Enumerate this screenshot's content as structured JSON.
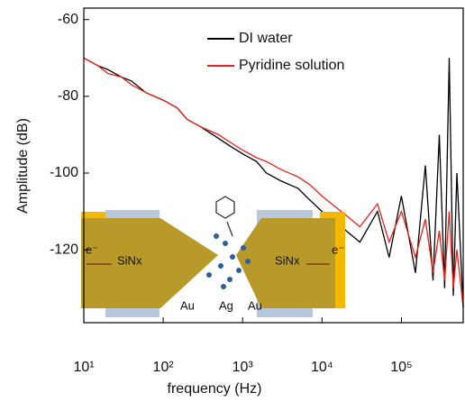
{
  "chart_data": {
    "type": "line",
    "x_label": "frequency (Hz)",
    "y_label": "Amplitude (dB)",
    "x_log": true,
    "xlim": [
      10,
      600000
    ],
    "ylim": [
      -139,
      -57
    ],
    "xticks": [
      {
        "value": 10,
        "label": "10¹"
      },
      {
        "value": 100,
        "label": "10²"
      },
      {
        "value": 1000,
        "label": "10³"
      },
      {
        "value": 10000,
        "label": "10⁴"
      },
      {
        "value": 100000,
        "label": "10⁵"
      }
    ],
    "yticks": [
      -60,
      -80,
      -100,
      -120
    ],
    "legend": "upper right",
    "x": [
      10,
      15,
      20,
      30,
      40,
      60,
      100,
      150,
      200,
      300,
      500,
      700,
      1000,
      1500,
      2000,
      3000,
      5000,
      7000,
      10000,
      20000,
      30000,
      50000,
      70000,
      100000,
      150000,
      200000,
      250000,
      300000,
      350000,
      400000,
      450000,
      500000,
      600000
    ],
    "series": [
      {
        "name": "DI water",
        "color": "#000000",
        "values": [
          -70,
          -72,
          -73,
          -75,
          -76,
          -79,
          -81,
          -83,
          -86,
          -88,
          -91,
          -93,
          -95,
          -97,
          -100,
          -102,
          -104,
          -107,
          -110,
          -115,
          -118,
          -110,
          -122,
          -106,
          -126,
          -98,
          -128,
          -90,
          -130,
          -70,
          -132,
          -100,
          -135
        ]
      },
      {
        "name": "Pyridine solution",
        "color": "#e8211b",
        "values": [
          -70,
          -72,
          -74,
          -75,
          -77,
          -79,
          -81,
          -83,
          -86,
          -88,
          -90,
          -92,
          -94,
          -96,
          -97,
          -99,
          -101,
          -103,
          -106,
          -111,
          -114,
          -108,
          -118,
          -110,
          -122,
          -112,
          -126,
          -115,
          -128,
          -110,
          -130,
          -120,
          -135
        ]
      }
    ]
  },
  "inset": {
    "labels": [
      "SiNx",
      "SiNx",
      "e⁻",
      "e⁻",
      "Au",
      "Ag",
      "Au"
    ]
  }
}
